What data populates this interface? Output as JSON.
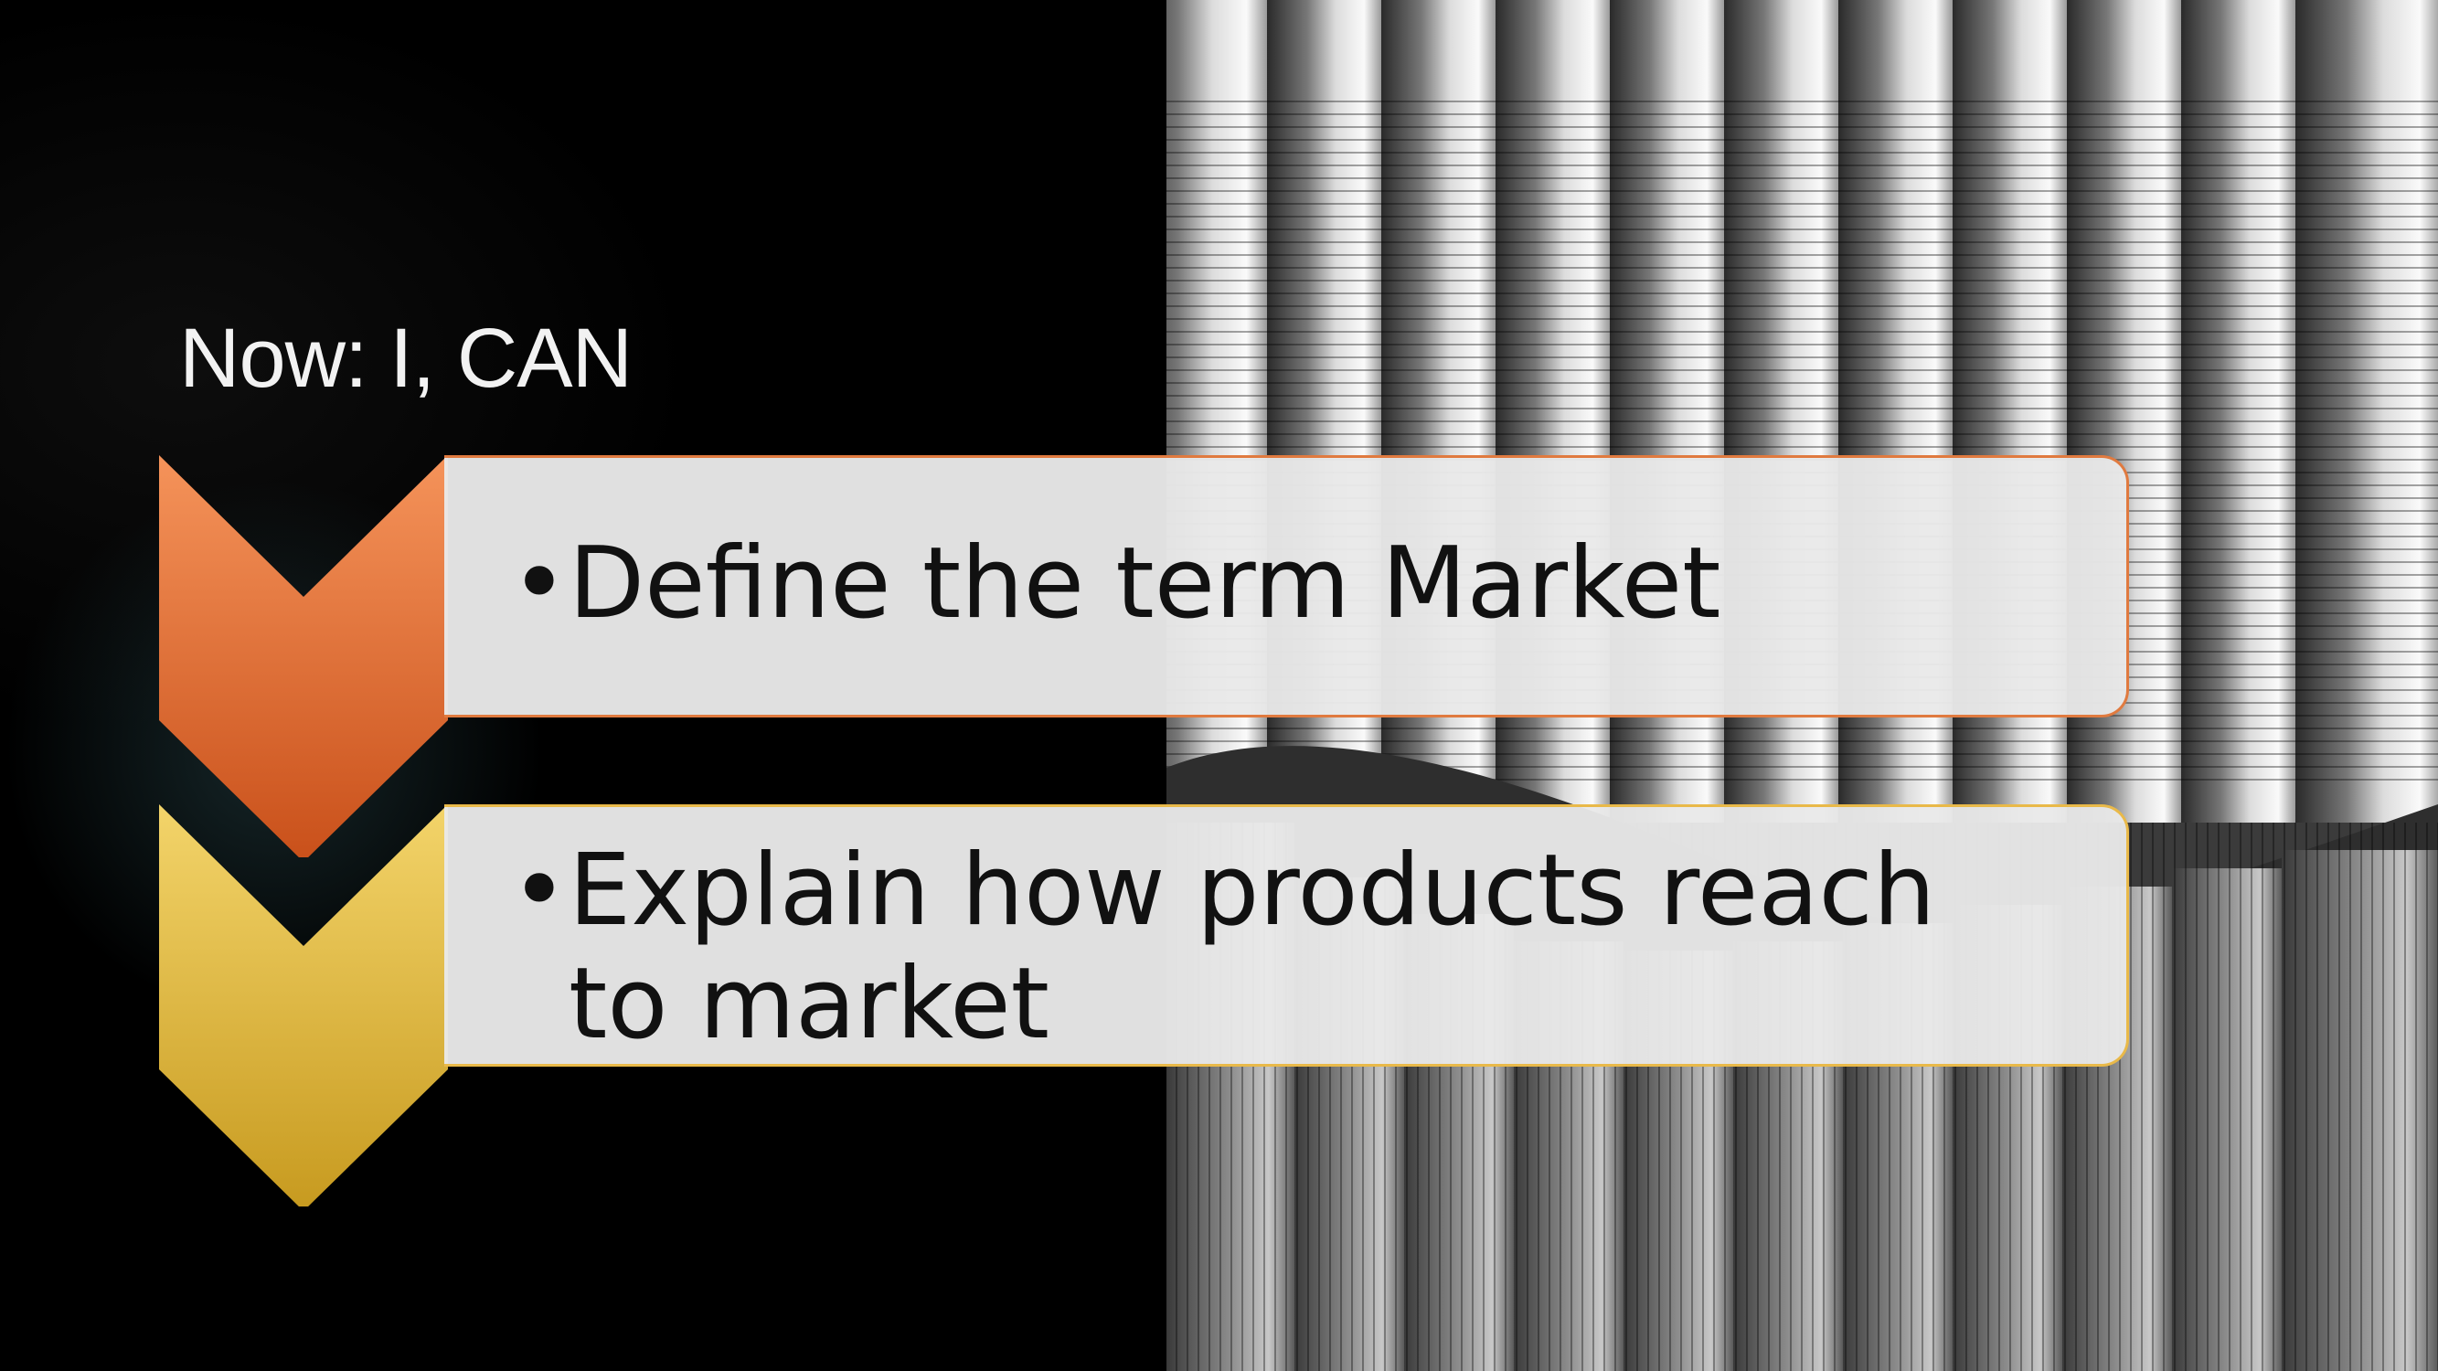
{
  "slide": {
    "title": "Now: I, CAN",
    "steps": [
      {
        "bullet": "•",
        "text": "Define the term Market",
        "accent": "#e87a3c"
      },
      {
        "bullet": "•",
        "text": "Explain how products reach  to market",
        "accent": "#e9c04a"
      }
    ]
  },
  "photo": {
    "description_icon": "architecture-photo"
  },
  "colors": {
    "background": "#000000",
    "step1_top": "#f5935a",
    "step1_bottom": "#c9501a",
    "step2_top": "#f3d46a",
    "step2_bottom": "#c79a1f",
    "box_fill": "#e9e9e9",
    "title": "#f2f2f2"
  }
}
